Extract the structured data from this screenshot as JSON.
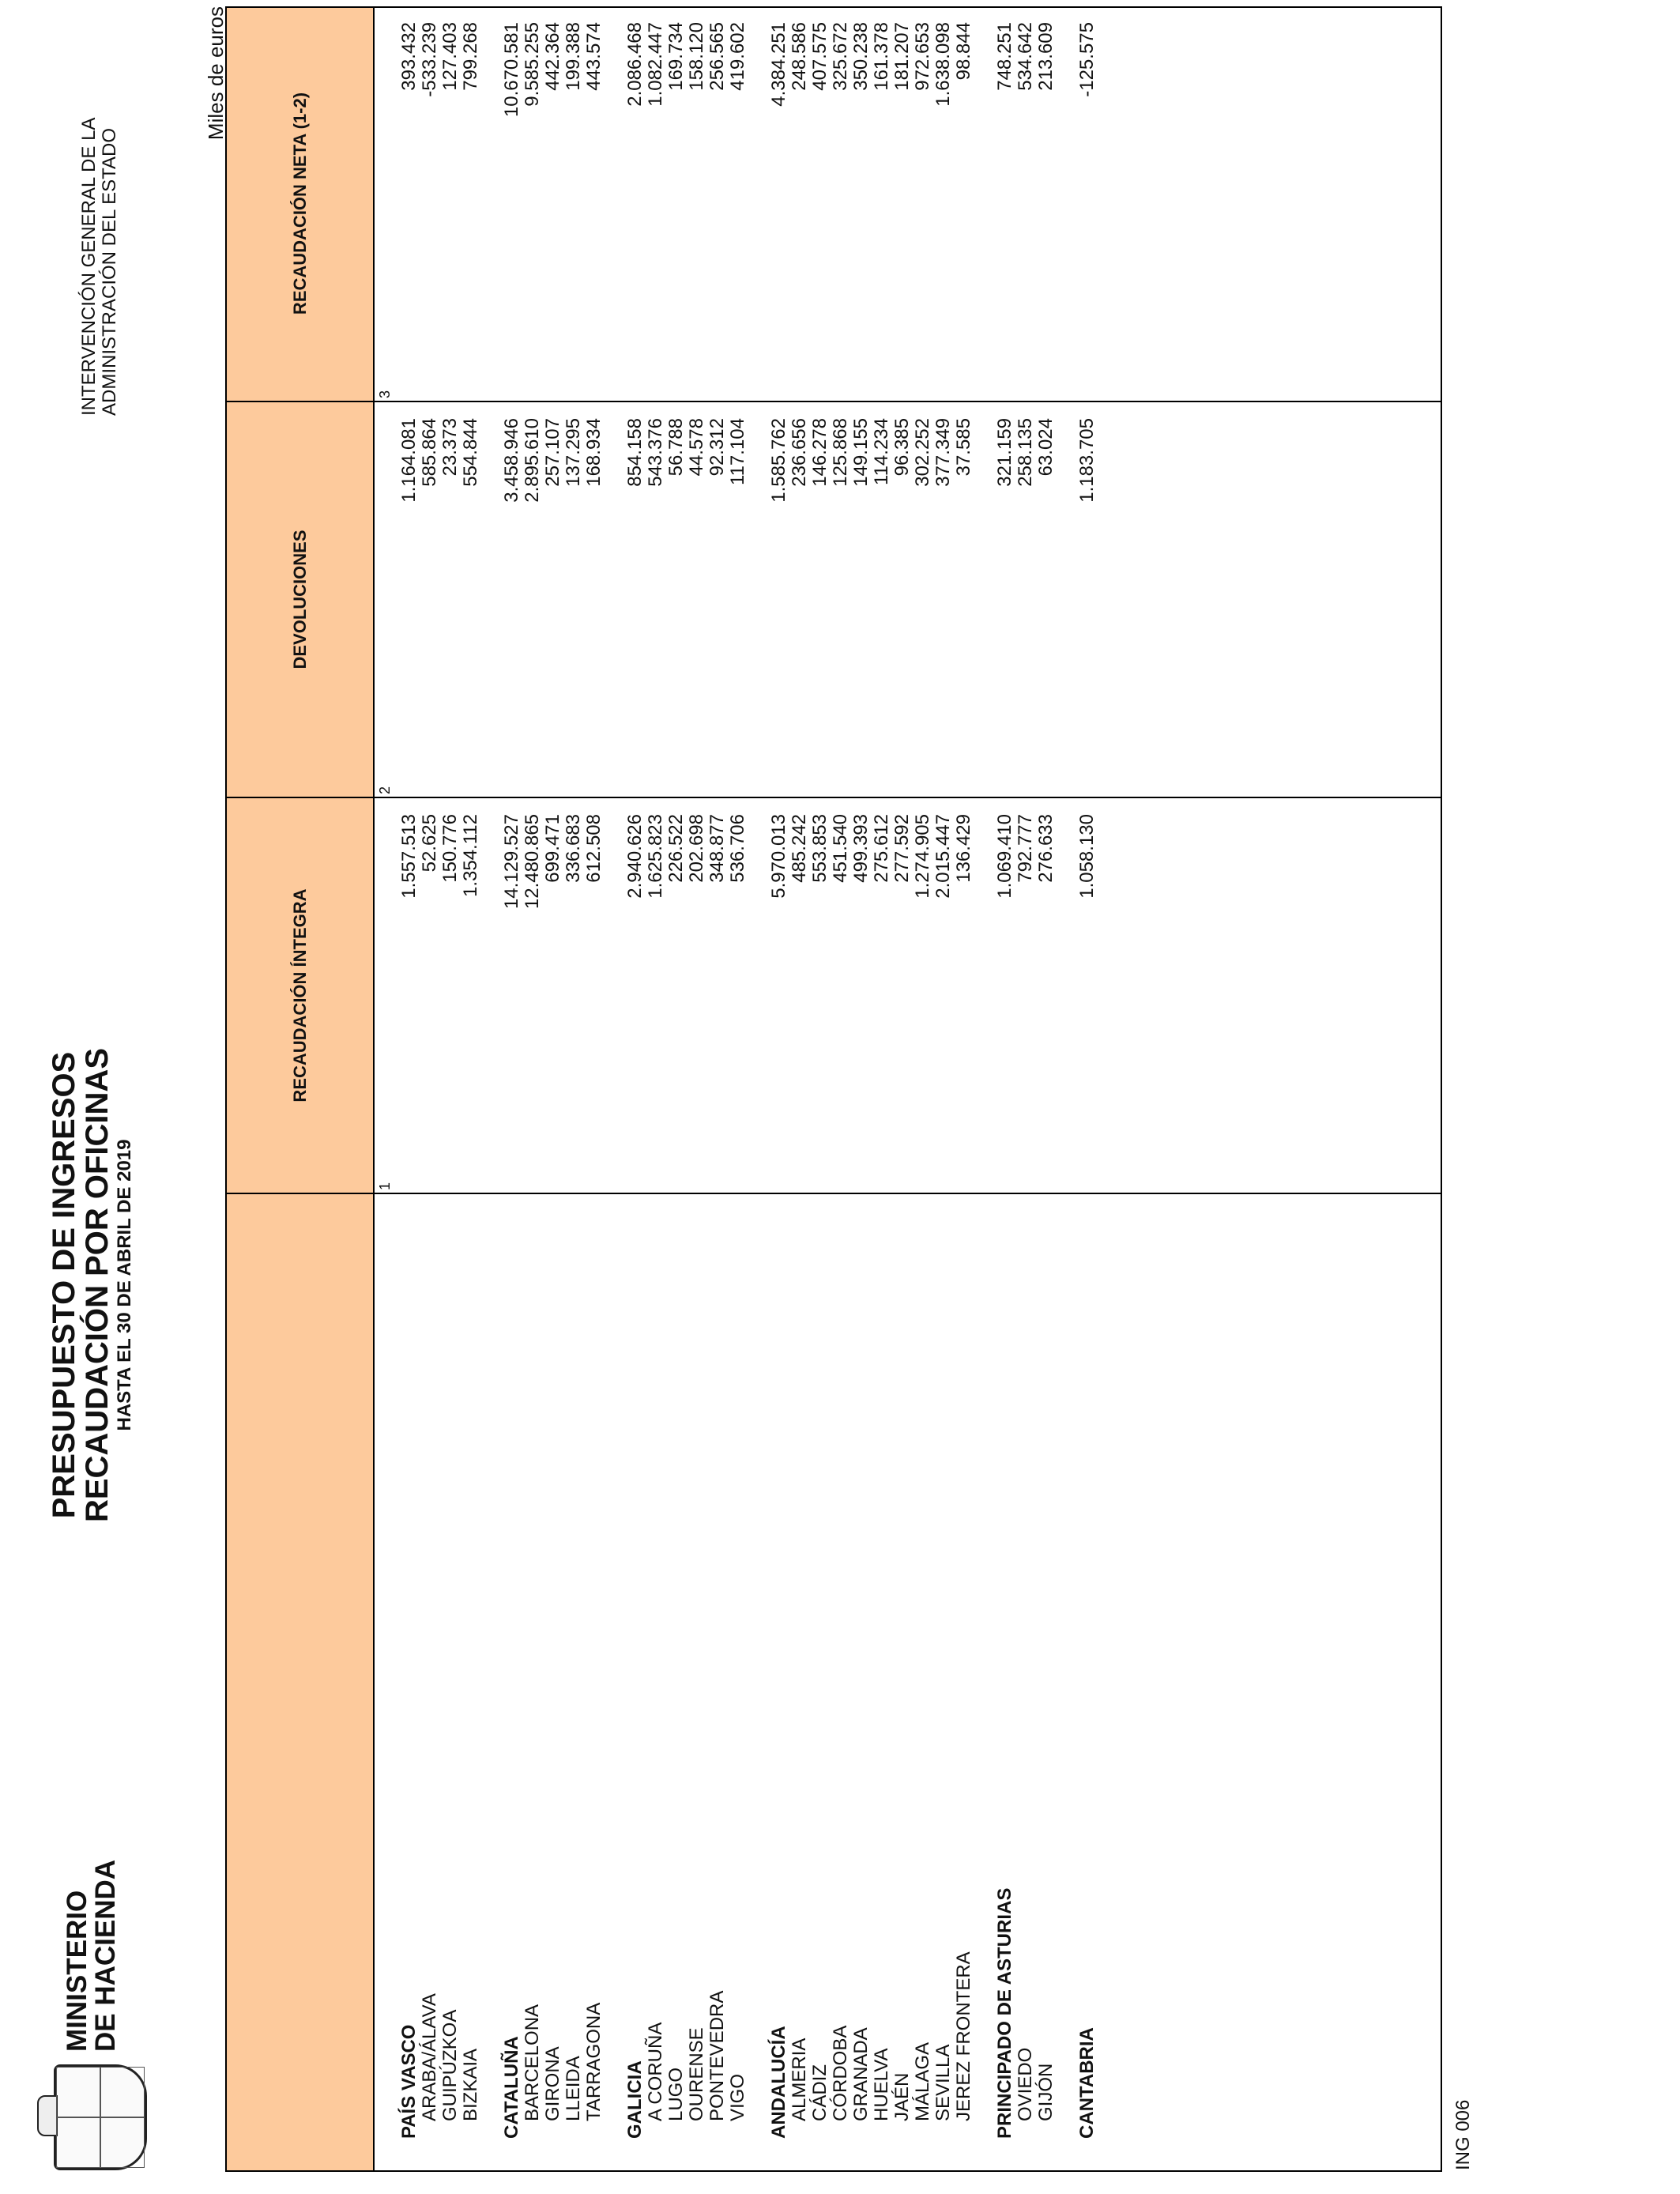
{
  "header": {
    "ministry_line1": "MINISTERIO",
    "ministry_line2": "DE HACIENDA",
    "title_line1": "PRESUPUESTO DE INGRESOS",
    "title_line2": "RECAUDACIÓN POR OFICINAS",
    "title_line3": "HASTA EL 30 DE ABRIL DE 2019",
    "agency_line1": "INTERVENCIÓN GENERAL DE LA",
    "agency_line2": "ADMINISTRACIÓN DEL ESTADO",
    "units": "Miles de euros"
  },
  "columns": [
    {
      "label": "",
      "num": ""
    },
    {
      "label": "RECAUDACIÓN ÍNTEGRA",
      "num": "1"
    },
    {
      "label": "DEVOLUCIONES",
      "num": "2"
    },
    {
      "label": "RECAUDACIÓN NETA (1-2)",
      "num": "3"
    }
  ],
  "rows": [
    {
      "label": "PAÍS VASCO",
      "type": "grp",
      "v1": "1.557.513",
      "v2": "1.164.081",
      "v3": "393.432"
    },
    {
      "label": "ARABA/ÁLAVA",
      "type": "sub",
      "v1": "52.625",
      "v2": "585.864",
      "v3": "-533.239"
    },
    {
      "label": "GUIPÚZKOA",
      "type": "sub",
      "v1": "150.776",
      "v2": "23.373",
      "v3": "127.403"
    },
    {
      "label": "BIZKAIA",
      "type": "sub",
      "v1": "1.354.112",
      "v2": "554.844",
      "v3": "799.268"
    },
    {
      "label": "",
      "type": "gap"
    },
    {
      "label": "CATALUÑA",
      "type": "grp",
      "v1": "14.129.527",
      "v2": "3.458.946",
      "v3": "10.670.581"
    },
    {
      "label": "BARCELONA",
      "type": "sub",
      "v1": "12.480.865",
      "v2": "2.895.610",
      "v3": "9.585.255"
    },
    {
      "label": "GIRONA",
      "type": "sub",
      "v1": "699.471",
      "v2": "257.107",
      "v3": "442.364"
    },
    {
      "label": "LLEIDA",
      "type": "sub",
      "v1": "336.683",
      "v2": "137.295",
      "v3": "199.388"
    },
    {
      "label": "TARRAGONA",
      "type": "sub",
      "v1": "612.508",
      "v2": "168.934",
      "v3": "443.574"
    },
    {
      "label": "",
      "type": "gap"
    },
    {
      "label": "GALICIA",
      "type": "grp",
      "v1": "2.940.626",
      "v2": "854.158",
      "v3": "2.086.468"
    },
    {
      "label": "A CORUÑA",
      "type": "sub",
      "v1": "1.625.823",
      "v2": "543.376",
      "v3": "1.082.447"
    },
    {
      "label": "LUGO",
      "type": "sub",
      "v1": "226.522",
      "v2": "56.788",
      "v3": "169.734"
    },
    {
      "label": "OURENSE",
      "type": "sub",
      "v1": "202.698",
      "v2": "44.578",
      "v3": "158.120"
    },
    {
      "label": "PONTEVEDRA",
      "type": "sub",
      "v1": "348.877",
      "v2": "92.312",
      "v3": "256.565"
    },
    {
      "label": "VIGO",
      "type": "sub",
      "v1": "536.706",
      "v2": "117.104",
      "v3": "419.602"
    },
    {
      "label": "",
      "type": "gap"
    },
    {
      "label": "ANDALUCÍA",
      "type": "grp",
      "v1": "5.970.013",
      "v2": "1.585.762",
      "v3": "4.384.251"
    },
    {
      "label": "ALMERIA",
      "type": "sub",
      "v1": "485.242",
      "v2": "236.656",
      "v3": "248.586"
    },
    {
      "label": "CÁDIZ",
      "type": "sub",
      "v1": "553.853",
      "v2": "146.278",
      "v3": "407.575"
    },
    {
      "label": "CÓRDOBA",
      "type": "sub",
      "v1": "451.540",
      "v2": "125.868",
      "v3": "325.672"
    },
    {
      "label": "GRANADA",
      "type": "sub",
      "v1": "499.393",
      "v2": "149.155",
      "v3": "350.238"
    },
    {
      "label": "HUELVA",
      "type": "sub",
      "v1": "275.612",
      "v2": "114.234",
      "v3": "161.378"
    },
    {
      "label": "JAÉN",
      "type": "sub",
      "v1": "277.592",
      "v2": "96.385",
      "v3": "181.207"
    },
    {
      "label": "MÁLAGA",
      "type": "sub",
      "v1": "1.274.905",
      "v2": "302.252",
      "v3": "972.653"
    },
    {
      "label": "SEVILLA",
      "type": "sub",
      "v1": "2.015.447",
      "v2": "377.349",
      "v3": "1.638.098"
    },
    {
      "label": "JEREZ FRONTERA",
      "type": "sub",
      "v1": "136.429",
      "v2": "37.585",
      "v3": "98.844"
    },
    {
      "label": "",
      "type": "gap"
    },
    {
      "label": "PRINCIPADO DE ASTURIAS",
      "type": "grp",
      "v1": "1.069.410",
      "v2": "321.159",
      "v3": "748.251"
    },
    {
      "label": "OVIEDO",
      "type": "sub",
      "v1": "792.777",
      "v2": "258.135",
      "v3": "534.642"
    },
    {
      "label": "GIJÓN",
      "type": "sub",
      "v1": "276.633",
      "v2": "63.024",
      "v3": "213.609"
    },
    {
      "label": "",
      "type": "gap"
    },
    {
      "label": "CANTABRIA",
      "type": "grp",
      "v1": "1.058.130",
      "v2": "1.183.705",
      "v3": "-125.575"
    }
  ],
  "footer": {
    "code": "ING 006"
  }
}
